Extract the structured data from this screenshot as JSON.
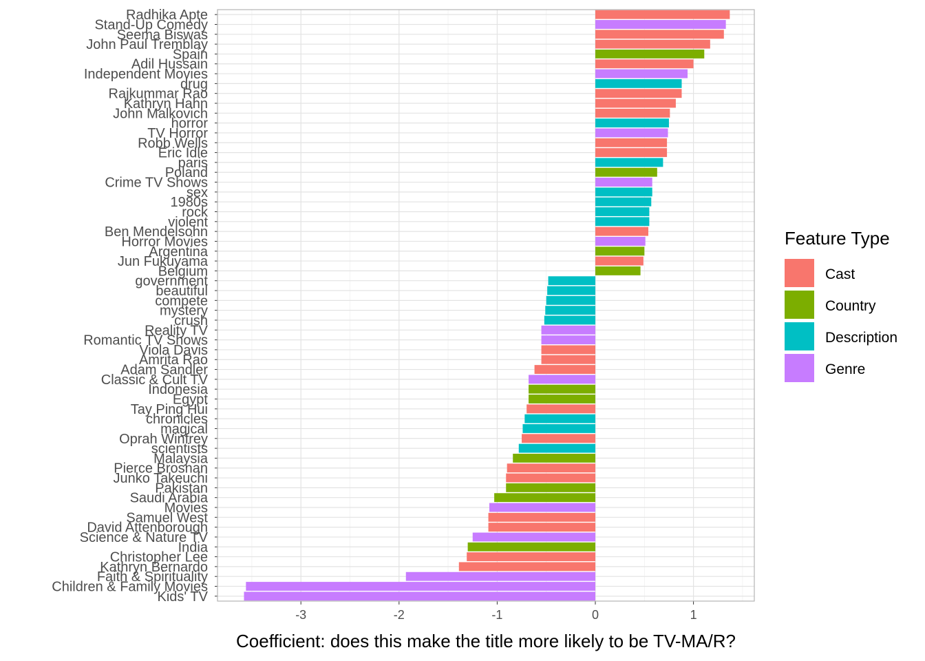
{
  "chart_data": {
    "type": "bar",
    "orientation": "horizontal",
    "xlabel": "Coefficient: does this make the title more likely to be TV-MA/R?",
    "ylabel": "",
    "xlim": [
      -3.85,
      1.62
    ],
    "x_ticks": [
      -3,
      -2,
      -1,
      0,
      1
    ],
    "x_tick_labels": [
      "-3",
      "-2",
      "-1",
      "0",
      "1"
    ],
    "grid": true,
    "legend": {
      "title": "Feature Type",
      "position": "right",
      "entries": [
        {
          "label": "Cast",
          "color": "#F8766D"
        },
        {
          "label": "Country",
          "color": "#7CAE00"
        },
        {
          "label": "Description",
          "color": "#00BFC4"
        },
        {
          "label": "Genre",
          "color": "#C77CFF"
        }
      ]
    },
    "bars": [
      {
        "label": "Radhika Apte",
        "value": 1.37,
        "type": "Cast"
      },
      {
        "label": "Stand-Up Comedy",
        "value": 1.33,
        "type": "Genre"
      },
      {
        "label": "Seema Biswas",
        "value": 1.31,
        "type": "Cast"
      },
      {
        "label": "John Paul Tremblay",
        "value": 1.17,
        "type": "Cast"
      },
      {
        "label": "Spain",
        "value": 1.11,
        "type": "Country"
      },
      {
        "label": "Adil Hussain",
        "value": 1.0,
        "type": "Cast"
      },
      {
        "label": "Independent Movies",
        "value": 0.94,
        "type": "Genre"
      },
      {
        "label": "drug",
        "value": 0.88,
        "type": "Description"
      },
      {
        "label": "Rajkummar Rao",
        "value": 0.88,
        "type": "Cast"
      },
      {
        "label": "Kathryn Hahn",
        "value": 0.82,
        "type": "Cast"
      },
      {
        "label": "John Malkovich",
        "value": 0.76,
        "type": "Cast"
      },
      {
        "label": "horror",
        "value": 0.75,
        "type": "Description"
      },
      {
        "label": "TV Horror",
        "value": 0.74,
        "type": "Genre"
      },
      {
        "label": "Robb Wells",
        "value": 0.73,
        "type": "Cast"
      },
      {
        "label": "Eric Idle",
        "value": 0.73,
        "type": "Cast"
      },
      {
        "label": "paris",
        "value": 0.69,
        "type": "Description"
      },
      {
        "label": "Poland",
        "value": 0.63,
        "type": "Country"
      },
      {
        "label": "Crime TV Shows",
        "value": 0.58,
        "type": "Genre"
      },
      {
        "label": "sex",
        "value": 0.58,
        "type": "Description"
      },
      {
        "label": "1980s",
        "value": 0.57,
        "type": "Description"
      },
      {
        "label": "rock",
        "value": 0.55,
        "type": "Description"
      },
      {
        "label": "violent",
        "value": 0.55,
        "type": "Description"
      },
      {
        "label": "Ben Mendelsohn",
        "value": 0.54,
        "type": "Cast"
      },
      {
        "label": "Horror Movies",
        "value": 0.51,
        "type": "Genre"
      },
      {
        "label": "Argentina",
        "value": 0.5,
        "type": "Country"
      },
      {
        "label": "Jun Fukuyama",
        "value": 0.49,
        "type": "Cast"
      },
      {
        "label": "Belgium",
        "value": 0.46,
        "type": "Country"
      },
      {
        "label": "government",
        "value": -0.48,
        "type": "Description"
      },
      {
        "label": "beautiful",
        "value": -0.49,
        "type": "Description"
      },
      {
        "label": "compete",
        "value": -0.5,
        "type": "Description"
      },
      {
        "label": "mystery",
        "value": -0.51,
        "type": "Description"
      },
      {
        "label": "crush",
        "value": -0.52,
        "type": "Description"
      },
      {
        "label": "Reality TV",
        "value": -0.55,
        "type": "Genre"
      },
      {
        "label": "Romantic TV Shows",
        "value": -0.55,
        "type": "Genre"
      },
      {
        "label": "Viola Davis",
        "value": -0.55,
        "type": "Cast"
      },
      {
        "label": "Amrita Rao",
        "value": -0.55,
        "type": "Cast"
      },
      {
        "label": "Adam Sandler",
        "value": -0.62,
        "type": "Cast"
      },
      {
        "label": "Classic & Cult TV",
        "value": -0.68,
        "type": "Genre"
      },
      {
        "label": "Indonesia",
        "value": -0.68,
        "type": "Country"
      },
      {
        "label": "Egypt",
        "value": -0.68,
        "type": "Country"
      },
      {
        "label": "Tay Ping Hui",
        "value": -0.7,
        "type": "Cast"
      },
      {
        "label": "chronicles",
        "value": -0.72,
        "type": "Description"
      },
      {
        "label": "magical",
        "value": -0.74,
        "type": "Description"
      },
      {
        "label": "Oprah Winfrey",
        "value": -0.75,
        "type": "Cast"
      },
      {
        "label": "scientists",
        "value": -0.78,
        "type": "Description"
      },
      {
        "label": "Malaysia",
        "value": -0.84,
        "type": "Country"
      },
      {
        "label": "Pierce Brosnan",
        "value": -0.9,
        "type": "Cast"
      },
      {
        "label": "Junko Takeuchi",
        "value": -0.91,
        "type": "Cast"
      },
      {
        "label": "Pakistan",
        "value": -0.91,
        "type": "Country"
      },
      {
        "label": "Saudi Arabia",
        "value": -1.03,
        "type": "Country"
      },
      {
        "label": "Movies",
        "value": -1.08,
        "type": "Genre"
      },
      {
        "label": "Samuel West",
        "value": -1.09,
        "type": "Cast"
      },
      {
        "label": "David Attenborough",
        "value": -1.09,
        "type": "Cast"
      },
      {
        "label": "Science & Nature TV",
        "value": -1.25,
        "type": "Genre"
      },
      {
        "label": "India",
        "value": -1.3,
        "type": "Country"
      },
      {
        "label": "Christopher Lee",
        "value": -1.31,
        "type": "Cast"
      },
      {
        "label": "Kathryn Bernardo",
        "value": -1.39,
        "type": "Cast"
      },
      {
        "label": "Faith & Spirituality",
        "value": -1.93,
        "type": "Genre"
      },
      {
        "label": "Children & Family Movies",
        "value": -3.56,
        "type": "Genre"
      },
      {
        "label": "Kids' TV",
        "value": -3.58,
        "type": "Genre"
      }
    ]
  }
}
